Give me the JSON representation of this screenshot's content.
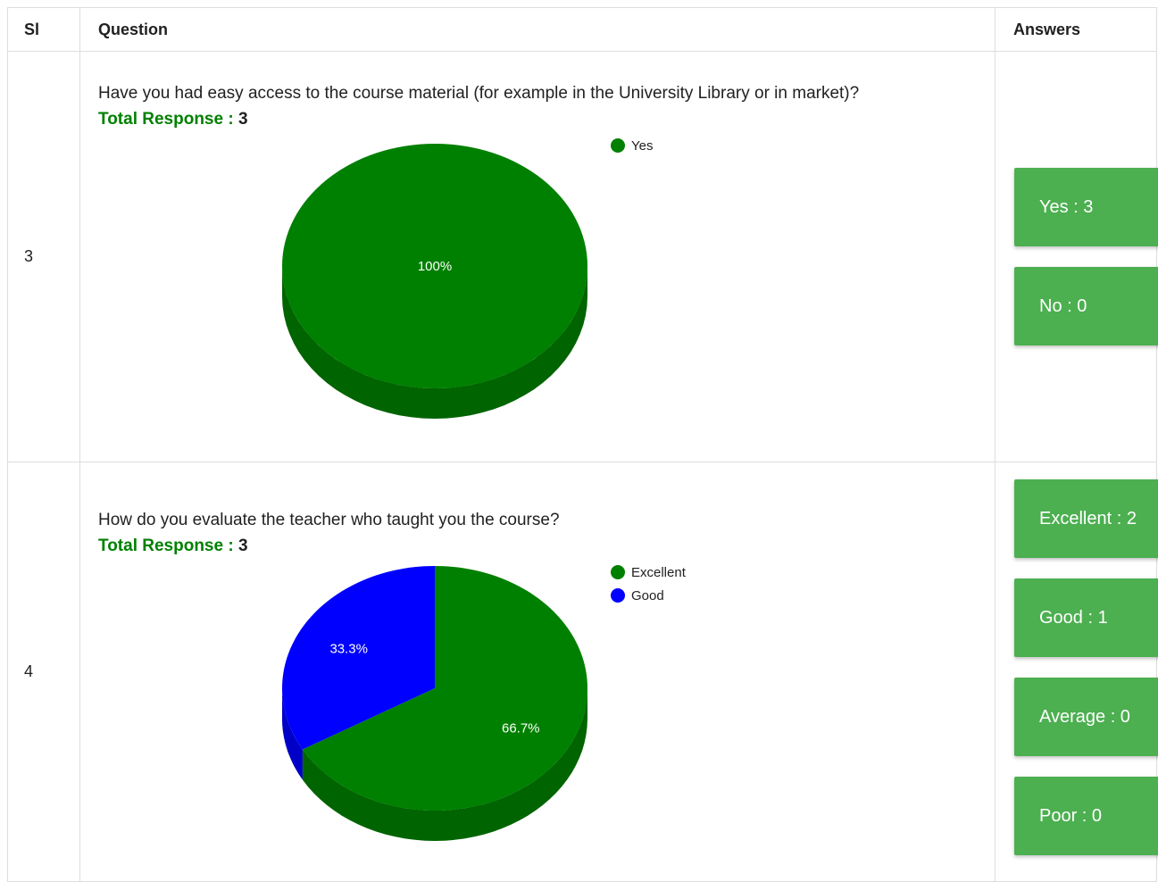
{
  "header": {
    "sl": "Sl",
    "question": "Question",
    "answers": "Answers"
  },
  "rows": [
    {
      "sl": "3",
      "question": "Have you had easy access to the course material (for example in the University Library or in market)?",
      "total_label": "Total Response :",
      "total_value": "3",
      "legend": [
        {
          "label": "Yes",
          "color": "#008000"
        }
      ],
      "answers": [
        {
          "text": "Yes : 3"
        },
        {
          "text": "No : 0"
        }
      ],
      "chart_data": {
        "type": "pie",
        "categories": [
          "Yes"
        ],
        "values": [
          3
        ],
        "slice_labels": [
          "100%"
        ],
        "colors": [
          "#008000"
        ],
        "legend_position": "top-right"
      }
    },
    {
      "sl": "4",
      "question": "How do you evaluate the teacher who taught you the course?",
      "total_label": "Total Response :",
      "total_value": "3",
      "legend": [
        {
          "label": "Excellent",
          "color": "#008000"
        },
        {
          "label": "Good",
          "color": "#0000ff"
        }
      ],
      "answers": [
        {
          "text": "Excellent : 2"
        },
        {
          "text": "Good : 1"
        },
        {
          "text": "Average : 0"
        },
        {
          "text": "Poor : 0"
        }
      ],
      "chart_data": {
        "type": "pie",
        "categories": [
          "Excellent",
          "Good"
        ],
        "values": [
          2,
          1
        ],
        "slice_labels": [
          "66.7%",
          "33.3%"
        ],
        "colors": [
          "#008000",
          "#0000ff"
        ],
        "legend_position": "top-right"
      }
    }
  ]
}
